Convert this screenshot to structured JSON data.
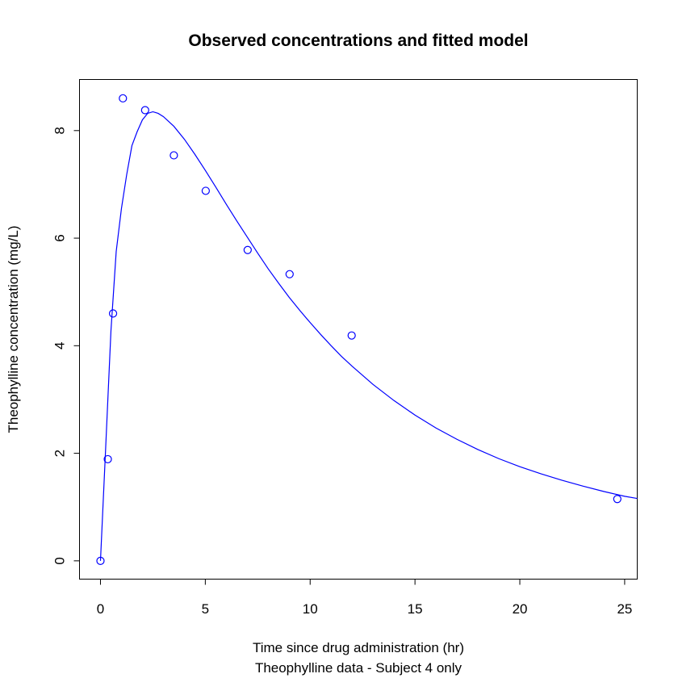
{
  "chart_data": {
    "type": "scatter",
    "title": "Observed concentrations and fitted model",
    "xlabel": "Time since drug administration (hr)",
    "ylabel": "Theophylline concentration (mg/L)",
    "subtitle": "Theophylline data - Subject 4 only",
    "xlim": [
      -1.0,
      25.6
    ],
    "ylim": [
      -0.34,
      8.95
    ],
    "x_ticks": [
      0,
      5,
      10,
      15,
      20,
      25
    ],
    "y_ticks": [
      0,
      2,
      4,
      6,
      8
    ],
    "grid": false,
    "legend": "none",
    "color": "#0000ff",
    "observed": {
      "name": "Observed concentrations",
      "x": [
        0.0,
        0.35,
        0.6,
        1.07,
        2.13,
        3.5,
        5.02,
        7.02,
        9.02,
        11.98,
        24.65
      ],
      "y": [
        0.0,
        1.89,
        4.6,
        8.6,
        8.38,
        7.54,
        6.88,
        5.78,
        5.33,
        4.19,
        1.15
      ]
    },
    "fitted": {
      "name": "Fitted model",
      "x": [
        0.0,
        0.25,
        0.5,
        0.75,
        1.0,
        1.25,
        1.5,
        1.75,
        2.0,
        2.25,
        2.5,
        2.75,
        3.0,
        3.5,
        4.0,
        4.5,
        5.0,
        5.5,
        6.0,
        6.5,
        7.0,
        7.5,
        8.0,
        8.5,
        9.0,
        9.5,
        10.0,
        10.5,
        11.0,
        11.5,
        12.0,
        13.0,
        14.0,
        15.0,
        16.0,
        17.0,
        18.0,
        19.0,
        20.0,
        21.0,
        22.0,
        23.0,
        24.0,
        25.0,
        25.6
      ],
      "y": [
        0.0,
        2.12,
        4.28,
        5.75,
        6.55,
        7.18,
        7.72,
        7.98,
        8.2,
        8.32,
        8.35,
        8.32,
        8.26,
        8.08,
        7.84,
        7.56,
        7.26,
        6.95,
        6.63,
        6.32,
        6.02,
        5.72,
        5.43,
        5.16,
        4.9,
        4.66,
        4.43,
        4.21,
        4.0,
        3.8,
        3.62,
        3.28,
        2.98,
        2.71,
        2.47,
        2.26,
        2.07,
        1.9,
        1.75,
        1.62,
        1.5,
        1.39,
        1.29,
        1.2,
        1.16
      ]
    }
  }
}
